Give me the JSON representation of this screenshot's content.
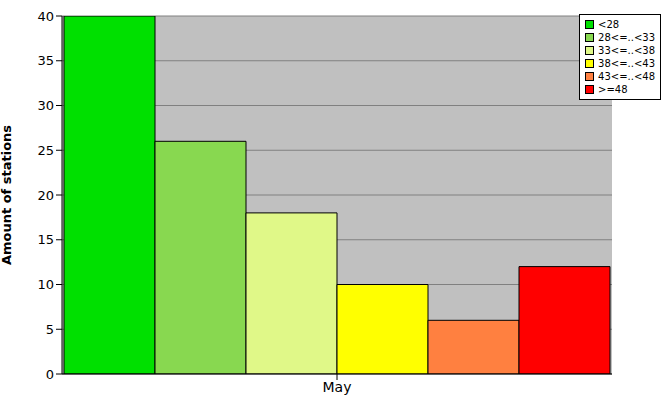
{
  "chart_data": {
    "type": "bar",
    "y_label": "Amount of stations",
    "categories": [
      "May"
    ],
    "series": [
      {
        "name": "<28",
        "color": "#00e000",
        "values": [
          40
        ]
      },
      {
        "name": "28<=..<33",
        "color": "#88d850",
        "values": [
          26
        ]
      },
      {
        "name": "33<=..<38",
        "color": "#e0f888",
        "values": [
          18
        ]
      },
      {
        "name": "38<=..<43",
        "color": "#ffff00",
        "values": [
          10
        ]
      },
      {
        "name": "43<=..<48",
        "color": "#ff8040",
        "values": [
          6
        ]
      },
      {
        "name": ">=48",
        "color": "#ff0000",
        "values": [
          12
        ]
      }
    ],
    "ylim": [
      0,
      40
    ],
    "yticks": [
      0,
      5,
      10,
      15,
      20,
      25,
      30,
      35,
      40
    ],
    "grid": true,
    "legend": "top-right"
  }
}
